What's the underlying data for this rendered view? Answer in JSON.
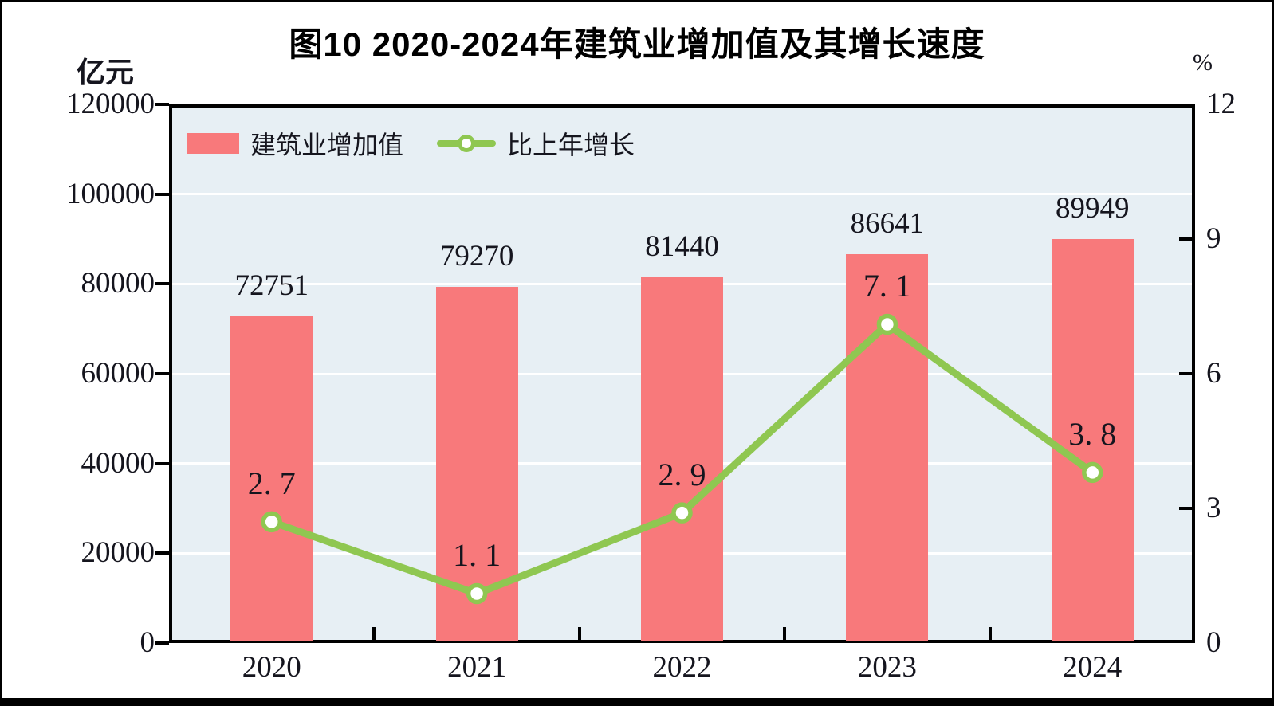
{
  "chart_data": {
    "type": "bar",
    "combo": "bar+line",
    "title": "图10  2020-2024年建筑业增加值及其增长速度",
    "categories": [
      "2020",
      "2021",
      "2022",
      "2023",
      "2024"
    ],
    "series": [
      {
        "name": "建筑业增加值",
        "type": "bar",
        "axis": "left",
        "values": [
          72751,
          79270,
          81440,
          86641,
          89949
        ],
        "value_labels": [
          "72751",
          "79270",
          "81440",
          "86641",
          "89949"
        ],
        "color": "#F8797B"
      },
      {
        "name": "比上年增长",
        "type": "line",
        "axis": "right",
        "values": [
          2.7,
          1.1,
          2.9,
          7.1,
          3.8
        ],
        "value_labels": [
          "2. 7",
          "1. 1",
          "2. 9",
          "7. 1",
          "3. 8"
        ],
        "color": "#8FC751",
        "marker": "circle-white-fill-green-ring"
      }
    ],
    "left_axis": {
      "unit": "亿元",
      "min": 0,
      "max": 120000,
      "ticks": [
        0,
        20000,
        40000,
        60000,
        80000,
        100000,
        120000
      ],
      "tick_labels": [
        "0",
        "20000",
        "40000",
        "60000",
        "80000",
        "100000",
        "120000"
      ]
    },
    "right_axis": {
      "unit": "%",
      "min": 0,
      "max": 12,
      "ticks": [
        0,
        3,
        6,
        9,
        12
      ],
      "tick_labels": [
        "0",
        "3",
        "6",
        "9",
        "12"
      ],
      "inner_tick_values": [
        3,
        6,
        9
      ]
    },
    "gridlines": {
      "values": [
        20000,
        40000,
        60000,
        80000,
        100000
      ],
      "color": "#FFFFFF"
    },
    "plot_background": "#E7EFF4",
    "legend_position": "top-left-inside"
  }
}
